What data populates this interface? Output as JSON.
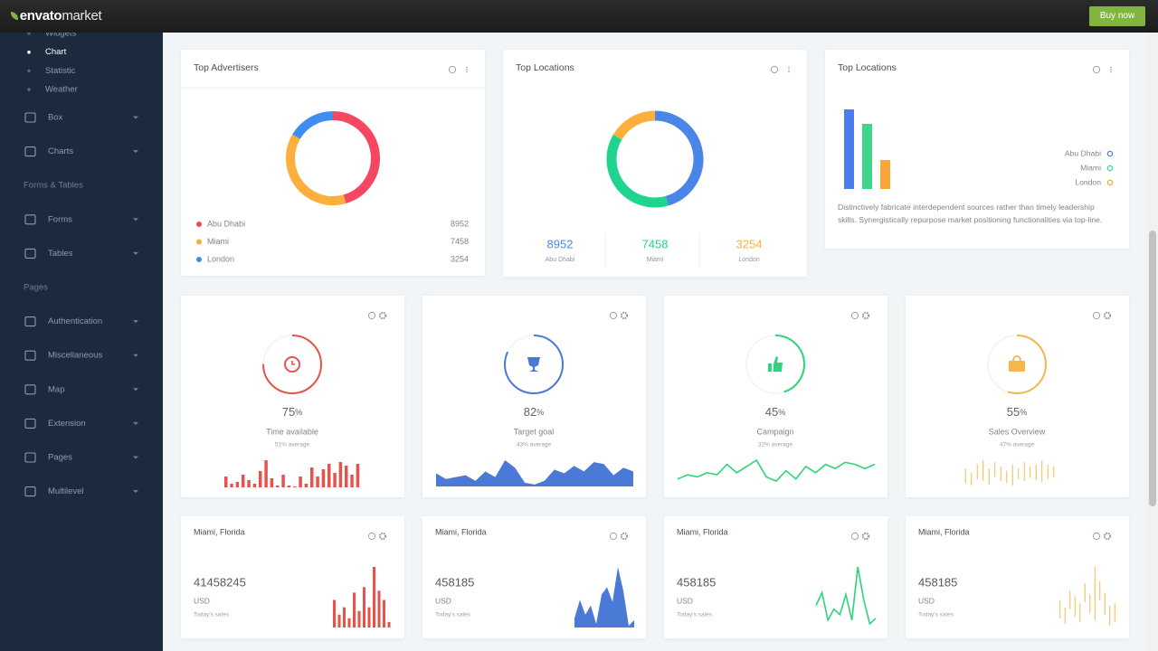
{
  "topbar": {
    "brand_a": "envato",
    "brand_b": "market",
    "button": "Buy now"
  },
  "sidebar": {
    "sub_items": [
      "Widgets",
      "Chart",
      "Statistic",
      "Weather"
    ],
    "rows": [
      {
        "item": "Box"
      },
      {
        "item": "Charts"
      },
      {
        "section": "Forms & Tables"
      },
      {
        "item": "Forms"
      },
      {
        "item": "Tables"
      },
      {
        "section": "Pages"
      },
      {
        "item": "Authentication"
      },
      {
        "item": "Miscellaneous"
      },
      {
        "item": "Map"
      },
      {
        "item": "Extension"
      },
      {
        "item": "Pages"
      },
      {
        "item": "Multilevel"
      }
    ]
  },
  "donut_cards": [
    {
      "title": "Top Advertisers",
      "chart_data": {
        "type": "donut",
        "categories": [
          "Abu Dhabi",
          "Miami",
          "London"
        ],
        "values": [
          8952,
          7458,
          3254
        ],
        "colors": [
          "#f5475f",
          "#fcb03b",
          "#3d8ef0"
        ]
      }
    },
    {
      "title": "Top Locations",
      "chart_data": {
        "type": "donut",
        "categories": [
          "Abu Dhabi",
          "Miami",
          "London"
        ],
        "values": [
          8952,
          7458,
          3254
        ],
        "colors": [
          "#4a86e8",
          "#1fd48e",
          "#fcb03b"
        ]
      }
    }
  ],
  "bar_card": {
    "title": "Top Locations",
    "chart_data": {
      "type": "bar",
      "categories": [
        "Abu Dhabi",
        "Miami",
        "London"
      ],
      "values": [
        88,
        72,
        32
      ],
      "colors": [
        "#4d7cf0",
        "#3ed68a",
        "#f9a53a"
      ]
    },
    "text": "Distinctively fabricate interdependent sources rather than timely leadership skills. Synergistically repurpose market positioning functionalities via top-line."
  },
  "stat_cards": [
    {
      "value": 75,
      "unit": "%",
      "label": "Time available",
      "average": "51% average",
      "color": "#e5534b",
      "chart_data": {
        "type": "bar",
        "values": [
          12,
          4,
          6,
          14,
          8,
          4,
          18,
          30,
          10,
          2,
          14,
          2,
          1,
          12,
          4,
          22,
          12,
          20,
          26,
          16,
          28,
          24,
          14,
          26
        ]
      }
    },
    {
      "value": 82,
      "unit": "%",
      "label": "Target goal",
      "average": "43% average",
      "color": "#4b7ad6",
      "chart_data": {
        "type": "area",
        "values": [
          14,
          8,
          10,
          12,
          6,
          16,
          10,
          28,
          20,
          4,
          2,
          6,
          18,
          14,
          22,
          16,
          26,
          24,
          12,
          20,
          16
        ]
      }
    },
    {
      "value": 45,
      "unit": "%",
      "label": "Campaign",
      "average": "32% average",
      "color": "#2ed47a",
      "chart_data": {
        "type": "line",
        "values": [
          8,
          12,
          10,
          14,
          12,
          22,
          14,
          20,
          26,
          10,
          6,
          16,
          8,
          20,
          14,
          22,
          18,
          24,
          22,
          18,
          22
        ]
      }
    },
    {
      "value": 55,
      "unit": "%",
      "label": "Sales Overview",
      "average": "47% average",
      "color": "#f2b84b",
      "chart_data": {
        "type": "range",
        "low": [
          4,
          2,
          8,
          6,
          3,
          10,
          6,
          4,
          2,
          8,
          6,
          9,
          7,
          5,
          8,
          10
        ],
        "high": [
          18,
          14,
          22,
          26,
          18,
          24,
          20,
          16,
          22,
          18,
          24,
          20,
          22,
          26,
          22,
          20
        ]
      }
    }
  ],
  "sales_cards": [
    {
      "title": "Miami, Florida",
      "value": 41458245,
      "currency": "USD",
      "caption": "Today's sales",
      "color": "#e5534b",
      "chart_data": {
        "type": "bar",
        "values": [
          30,
          14,
          22,
          10,
          38,
          18,
          44,
          22,
          66,
          40,
          30,
          6
        ]
      }
    },
    {
      "title": "Miami, Florida",
      "value": 458185,
      "currency": "USD",
      "caption": "Today's sales",
      "color": "#4b7ad6",
      "chart_data": {
        "type": "area",
        "values": [
          10,
          30,
          14,
          24,
          4,
          36,
          44,
          28,
          66,
          40,
          2,
          8
        ]
      }
    },
    {
      "title": "Miami, Florida",
      "value": 458185,
      "currency": "USD",
      "caption": "Today's sales",
      "color": "#2ed47a",
      "chart_data": {
        "type": "line",
        "values": [
          24,
          38,
          8,
          20,
          14,
          36,
          8,
          66,
          30,
          4,
          10
        ]
      }
    },
    {
      "title": "Miami, Florida",
      "value": 458185,
      "currency": "USD",
      "caption": "Today's sales",
      "color": "#f2b84b",
      "chart_data": {
        "type": "range",
        "low": [
          10,
          4,
          20,
          12,
          6,
          28,
          16,
          8,
          30,
          14,
          2,
          6
        ],
        "high": [
          30,
          22,
          40,
          34,
          26,
          48,
          36,
          66,
          50,
          38,
          24,
          26
        ]
      }
    }
  ]
}
